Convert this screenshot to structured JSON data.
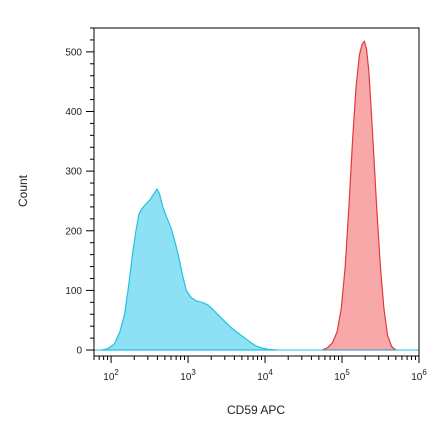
{
  "chart_data": {
    "type": "area",
    "title": "",
    "xlabel": "CD59 APC",
    "ylabel": "Count",
    "x_scale": "log",
    "xlim": [
      60,
      1000000
    ],
    "ylim": [
      -10,
      540
    ],
    "grid": false,
    "legend": "none",
    "x_ticks": [
      {
        "value": 100,
        "base": "10",
        "exp": "2"
      },
      {
        "value": 1000,
        "base": "10",
        "exp": "3"
      },
      {
        "value": 10000,
        "base": "10",
        "exp": "4"
      },
      {
        "value": 100000,
        "base": "10",
        "exp": "5"
      },
      {
        "value": 1000000,
        "base": "10",
        "exp": "6"
      }
    ],
    "y_ticks": [
      0,
      100,
      200,
      300,
      400,
      500
    ],
    "series": [
      {
        "fill": "#8ee0f4",
        "stroke": "#22c2e0",
        "points": [
          [
            75,
            0
          ],
          [
            90,
            2
          ],
          [
            110,
            10
          ],
          [
            130,
            30
          ],
          [
            150,
            60
          ],
          [
            170,
            110
          ],
          [
            190,
            160
          ],
          [
            210,
            200
          ],
          [
            230,
            228
          ],
          [
            255,
            238
          ],
          [
            285,
            245
          ],
          [
            320,
            252
          ],
          [
            360,
            262
          ],
          [
            395,
            270
          ],
          [
            425,
            262
          ],
          [
            470,
            240
          ],
          [
            530,
            222
          ],
          [
            600,
            205
          ],
          [
            680,
            180
          ],
          [
            760,
            155
          ],
          [
            850,
            125
          ],
          [
            950,
            100
          ],
          [
            1100,
            88
          ],
          [
            1300,
            82
          ],
          [
            1500,
            80
          ],
          [
            1800,
            76
          ],
          [
            2100,
            68
          ],
          [
            2500,
            58
          ],
          [
            3000,
            48
          ],
          [
            3600,
            38
          ],
          [
            4300,
            30
          ],
          [
            5200,
            22
          ],
          [
            6300,
            14
          ],
          [
            7600,
            7
          ],
          [
            9200,
            3
          ],
          [
            11000,
            1
          ],
          [
            14000,
            0
          ]
        ]
      },
      {
        "fill": "#f8a8a8",
        "stroke": "#e03a3a",
        "points": [
          [
            55000,
            0
          ],
          [
            65000,
            4
          ],
          [
            75000,
            12
          ],
          [
            86000,
            30
          ],
          [
            98000,
            70
          ],
          [
            110000,
            140
          ],
          [
            123000,
            240
          ],
          [
            137000,
            350
          ],
          [
            152000,
            440
          ],
          [
            168000,
            495
          ],
          [
            182000,
            512
          ],
          [
            195000,
            518
          ],
          [
            208000,
            505
          ],
          [
            222000,
            470
          ],
          [
            240000,
            400
          ],
          [
            260000,
            320
          ],
          [
            285000,
            230
          ],
          [
            315000,
            140
          ],
          [
            350000,
            70
          ],
          [
            390000,
            25
          ],
          [
            440000,
            6
          ],
          [
            500000,
            0
          ]
        ]
      }
    ]
  }
}
